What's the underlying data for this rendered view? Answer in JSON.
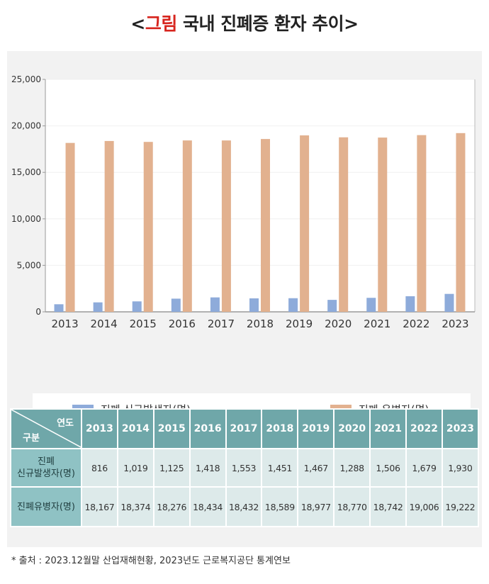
{
  "title": {
    "bracket_open": "<",
    "accent": "그림",
    "rest": " 국내 진폐증 환자 추이",
    "bracket_close": ">"
  },
  "chart_data": {
    "type": "bar",
    "categories": [
      "2013",
      "2014",
      "2015",
      "2016",
      "2017",
      "2018",
      "2019",
      "2020",
      "2021",
      "2022",
      "2023"
    ],
    "series": [
      {
        "name": "진폐 신규발생자(명)",
        "color": "#8eabda",
        "values": [
          816,
          1019,
          1125,
          1418,
          1553,
          1451,
          1467,
          1288,
          1506,
          1679,
          1930
        ]
      },
      {
        "name": "진폐 유병자(명)",
        "color": "#e2b18f",
        "values": [
          18167,
          18374,
          18276,
          18434,
          18432,
          18589,
          18977,
          18770,
          18742,
          19006,
          19222
        ]
      }
    ],
    "yticks": [
      "0",
      "5,000",
      "10,000",
      "15,000",
      "20,000",
      "25,000"
    ],
    "ylim": [
      0,
      25000
    ],
    "legend_position": "bottom"
  },
  "table": {
    "corner_top": "연도",
    "corner_bottom": "구분",
    "years": [
      "2013",
      "2014",
      "2015",
      "2016",
      "2017",
      "2018",
      "2019",
      "2020",
      "2021",
      "2022",
      "2023"
    ],
    "rows": [
      {
        "label_line1": "진폐",
        "label_line2": "신규발생자(명)",
        "cells": [
          "816",
          "1,019",
          "1,125",
          "1,418",
          "1,553",
          "1,451",
          "1,467",
          "1,288",
          "1,506",
          "1,679",
          "1,930"
        ]
      },
      {
        "label_line1": "진폐유병자(명)",
        "label_line2": "",
        "cells": [
          "18,167",
          "18,374",
          "18,276",
          "18,434",
          "18,432",
          "18,589",
          "18,977",
          "18,770",
          "18,742",
          "19,006",
          "19,222"
        ]
      }
    ]
  },
  "source": "*  출처 : 2023.12월말 산업재해현황, 2023년도 근로복지공단 통계연보"
}
